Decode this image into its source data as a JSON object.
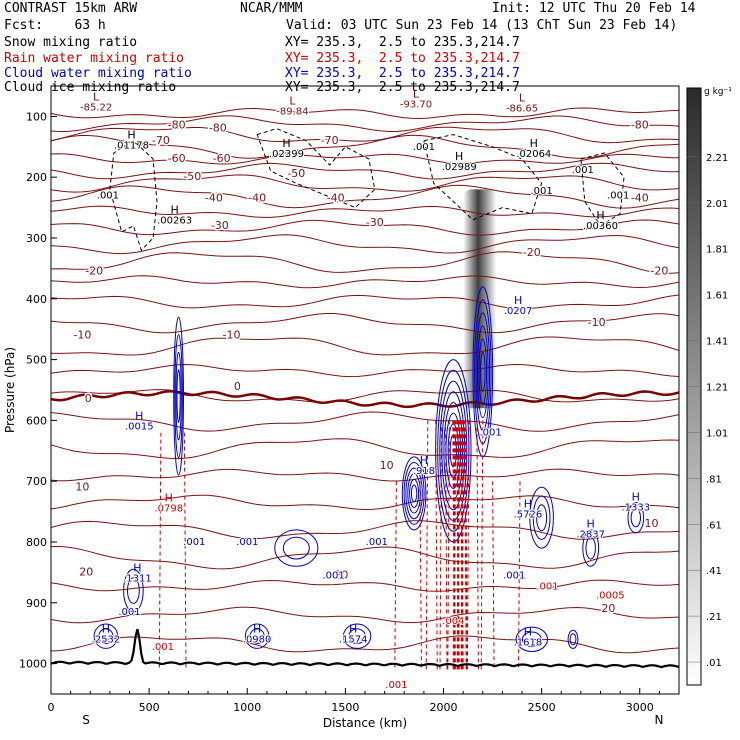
{
  "header": {
    "title_left": "CONTRAST 15km ARW",
    "title_center": "NCAR/MMM",
    "init": "Init: 12 UTC Thu 20 Feb 14",
    "fcst": "Fcst:    63 h",
    "valid": "Valid: 03 UTC Sun 23 Feb 14 (13 ChT Sun 23 Feb 14)"
  },
  "legend": [
    {
      "name": "Snow mixing ratio",
      "xy": "XY= 235.3,  2.5 to 235.3,214.7",
      "color": "#000000"
    },
    {
      "name": "Rain water mixing ratio",
      "xy": "XY= 235.3,  2.5 to 235.3,214.7",
      "color": "#d00000"
    },
    {
      "name": "Cloud water mixing ratio",
      "xy": "XY= 235.3,  2.5 to 235.3,214.7",
      "color": "#0000cc"
    },
    {
      "name": "Cloud ice mixing ratio",
      "xy": "XY= 235.3,  2.5 to 235.3,214.7",
      "color": "#000000"
    }
  ],
  "colors": {
    "temperature": "#7a1414",
    "zero_isotherm": "#7a0000",
    "rain": "#d00000",
    "cloud_water": "#0000cc",
    "snow": "#000000",
    "terrain": "#000000"
  },
  "chart_data": {
    "type": "cross-section contour",
    "xlabel": "Distance (km)",
    "ylabel": "Pressure (hPa)",
    "xlim": [
      0,
      3200
    ],
    "ylim": [
      1050,
      50
    ],
    "x_ticks": [
      0,
      500,
      1000,
      1500,
      2000,
      2500,
      3000
    ],
    "y_ticks": [
      100,
      200,
      300,
      400,
      500,
      600,
      700,
      800,
      900,
      1000
    ],
    "x_end_labels": {
      "left": "S",
      "right": "N"
    },
    "colorbar": {
      "unit": "g kg⁻¹",
      "labels": [
        ".01",
        ".21",
        ".41",
        ".61",
        ".81",
        "1.01",
        "1.21",
        "1.41",
        "1.61",
        "1.81",
        "2.01",
        "2.21"
      ]
    },
    "isotherm_labels": [
      {
        "text": "-80",
        "x": 640,
        "p": 120
      },
      {
        "text": "-80",
        "x": 850,
        "p": 125
      },
      {
        "text": "-80",
        "x": 3000,
        "p": 120
      },
      {
        "text": "-70",
        "x": 560,
        "p": 145
      },
      {
        "text": "-70",
        "x": 1420,
        "p": 145
      },
      {
        "text": "-60",
        "x": 640,
        "p": 175
      },
      {
        "text": "-60",
        "x": 870,
        "p": 175
      },
      {
        "text": "-50",
        "x": 720,
        "p": 205
      },
      {
        "text": "-50",
        "x": 1250,
        "p": 200
      },
      {
        "text": "-40",
        "x": 830,
        "p": 240
      },
      {
        "text": "-40",
        "x": 1050,
        "p": 240
      },
      {
        "text": "-40",
        "x": 1450,
        "p": 240
      },
      {
        "text": "-40",
        "x": 3000,
        "p": 240
      },
      {
        "text": "-30",
        "x": 860,
        "p": 285
      },
      {
        "text": "-30",
        "x": 1650,
        "p": 280
      },
      {
        "text": "-20",
        "x": 220,
        "p": 360
      },
      {
        "text": "-20",
        "x": 2450,
        "p": 330
      },
      {
        "text": "-20",
        "x": 3100,
        "p": 360
      },
      {
        "text": "-10",
        "x": 160,
        "p": 465
      },
      {
        "text": "-10",
        "x": 920,
        "p": 465
      },
      {
        "text": "-10",
        "x": 2780,
        "p": 445
      },
      {
        "text": "0",
        "x": 190,
        "p": 570
      },
      {
        "text": "0",
        "x": 950,
        "p": 550
      },
      {
        "text": "10",
        "x": 160,
        "p": 715
      },
      {
        "text": "10",
        "x": 1710,
        "p": 680
      },
      {
        "text": "10",
        "x": 3060,
        "p": 775
      },
      {
        "text": "20",
        "x": 180,
        "p": 855
      },
      {
        "text": "20",
        "x": 1480,
        "p": 860
      },
      {
        "text": "20",
        "x": 2840,
        "p": 915
      }
    ],
    "extrema": [
      {
        "mark": "L",
        "value": "-85.22",
        "x": 230,
        "p": 90
      },
      {
        "mark": "L",
        "value": "-89.84",
        "x": 1230,
        "p": 97
      },
      {
        "mark": "L",
        "value": "-93.70",
        "x": 1860,
        "p": 85
      },
      {
        "mark": "L",
        "value": "-86.65",
        "x": 2400,
        "p": 92
      },
      {
        "mark": "H",
        "value": ".01178",
        "x": 410,
        "p": 153
      },
      {
        "mark": "H",
        "value": ".02399",
        "x": 1200,
        "p": 167
      },
      {
        "mark": "H",
        "value": ".02989",
        "x": 2080,
        "p": 188
      },
      {
        "mark": "H",
        "value": ".02064",
        "x": 2460,
        "p": 167
      },
      {
        "mark": "H",
        "value": ".00263",
        "x": 630,
        "p": 276
      },
      {
        "mark": "H",
        "value": ".00360",
        "x": 2800,
        "p": 285
      },
      {
        "mark": "H",
        "value": ".0207",
        "x": 2380,
        "p": 425
      },
      {
        "mark": "H",
        "value": ".0015",
        "x": 450,
        "p": 615
      },
      {
        "mark": "H",
        "value": ".918",
        "x": 1900,
        "p": 688
      },
      {
        "mark": "H",
        "value": ".0798",
        "x": 600,
        "p": 750
      },
      {
        "mark": "H",
        "value": ".5726",
        "x": 2430,
        "p": 760
      },
      {
        "mark": "H",
        "value": ".2837",
        "x": 2750,
        "p": 793
      },
      {
        "mark": "H",
        "value": ".1333",
        "x": 2980,
        "p": 748
      },
      {
        "mark": "H",
        "value": ".1311",
        "x": 440,
        "p": 865
      },
      {
        "mark": "H",
        "value": ".2532",
        "x": 280,
        "p": 965
      },
      {
        "mark": "H",
        "value": ".0980",
        "x": 1050,
        "p": 965
      },
      {
        "mark": "H",
        "value": ".1574",
        "x": 1540,
        "p": 965
      },
      {
        "mark": "H",
        "value": ".1618",
        "x": 2430,
        "p": 970
      }
    ],
    "annotations": [
      {
        "text": ".001",
        "x": 290,
        "p": 235,
        "series": "snow"
      },
      {
        "text": ".001",
        "x": 1900,
        "p": 155,
        "series": "snow"
      },
      {
        "text": ".001",
        "x": 2710,
        "p": 193,
        "series": "snow"
      },
      {
        "text": ".001",
        "x": 2500,
        "p": 228,
        "series": "snow"
      },
      {
        "text": ".001",
        "x": 2890,
        "p": 235,
        "series": "snow"
      },
      {
        "text": ".001",
        "x": 2240,
        "p": 625,
        "series": "cloud"
      },
      {
        "text": ".001",
        "x": 730,
        "p": 805,
        "series": "cloud"
      },
      {
        "text": ".001",
        "x": 1000,
        "p": 805,
        "series": "cloud"
      },
      {
        "text": ".001",
        "x": 1440,
        "p": 860,
        "series": "cloud"
      },
      {
        "text": ".001",
        "x": 1660,
        "p": 805,
        "series": "cloud"
      },
      {
        "text": ".001",
        "x": 2360,
        "p": 860,
        "series": "cloud"
      },
      {
        "text": ".001",
        "x": 400,
        "p": 920,
        "series": "cloud"
      },
      {
        "text": ".001",
        "x": 570,
        "p": 978,
        "series": "rain"
      },
      {
        "text": ".001",
        "x": 1760,
        "p": 1040,
        "series": "rain"
      },
      {
        "text": ".001",
        "x": 2530,
        "p": 878,
        "series": "rain"
      },
      {
        "text": ".0005",
        "x": 2850,
        "p": 893,
        "series": "rain"
      },
      {
        "text": ".004",
        "x": 2050,
        "p": 935,
        "series": "rain"
      }
    ]
  }
}
